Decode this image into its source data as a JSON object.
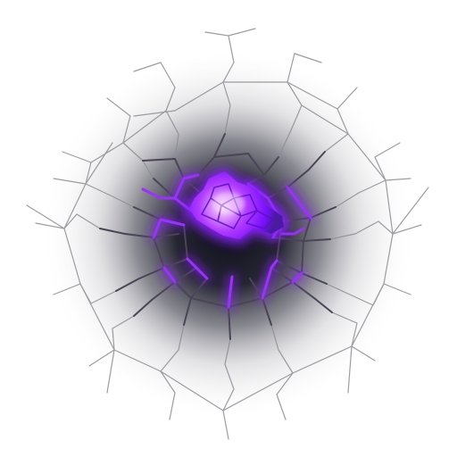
{
  "sprite": {
    "kind": "ground-crack-impact-decal",
    "icon": "cracked-ground-icon",
    "colors": {
      "background": "#ffffff",
      "shadow_core": "#141424",
      "crack_outer": "#7a7a80",
      "crack_dark": "#3a3550",
      "glow_core": "#ffffff",
      "glow_mid": "#b13bff",
      "glow_outer": "#6a00ff",
      "glow_edge": "#3d1a8a"
    }
  }
}
